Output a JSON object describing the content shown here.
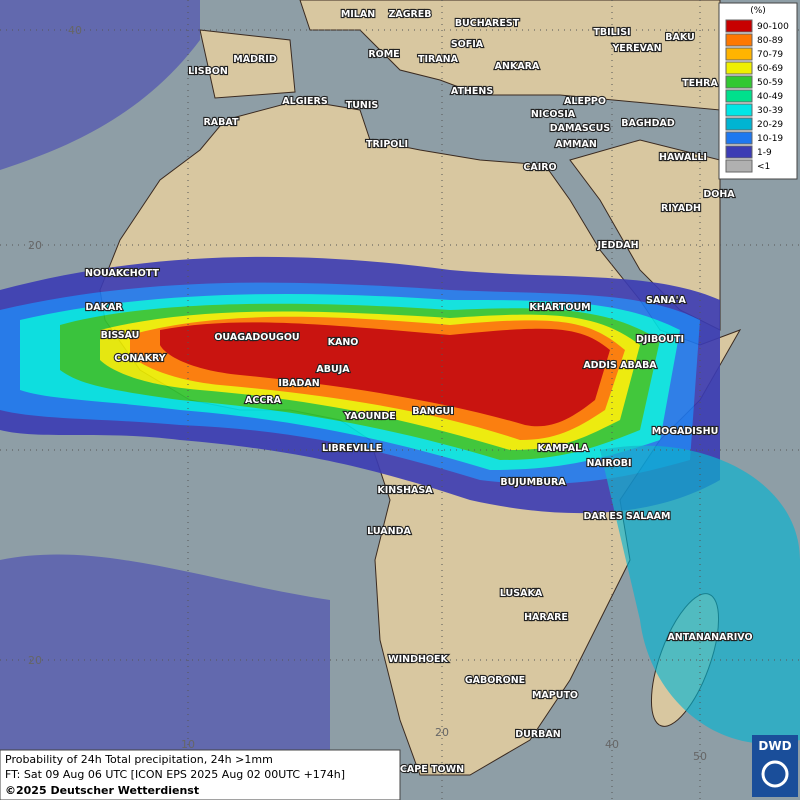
{
  "map": {
    "legend": {
      "title": "(%)",
      "entries": [
        {
          "label": "90-100",
          "color": "#c80000"
        },
        {
          "label": "80-89",
          "color": "#ff7800"
        },
        {
          "label": "70-79",
          "color": "#ffb400"
        },
        {
          "label": "60-69",
          "color": "#f0f000"
        },
        {
          "label": "50-59",
          "color": "#32c832"
        },
        {
          "label": "40-49",
          "color": "#00e08c"
        },
        {
          "label": "30-39",
          "color": "#00e6e6"
        },
        {
          "label": "20-29",
          "color": "#00b4d2"
        },
        {
          "label": "10-19",
          "color": "#1e78f0"
        },
        {
          "label": "1-9",
          "color": "#3c3cb4"
        },
        {
          "label": "<1",
          "color": "#b0b0b0"
        }
      ]
    },
    "cities": [
      "MILAN",
      "ZAGREB",
      "BUCHAREST",
      "TBILISI",
      "BAKU",
      "MADRID",
      "ROME",
      "SOFIA",
      "YEREVAN",
      "LISBON",
      "TIRANA",
      "ANKARA",
      "TEHRA",
      "ATHENS",
      "ALGIERS",
      "TUNIS",
      "ALEPPO",
      "NICOSIA",
      "RABAT",
      "BAGHDAD",
      "DAMASCUS",
      "TRIPOLI",
      "AMMAN",
      "HAWALLI",
      "CAIRO",
      "DOHA",
      "RIYADH",
      "JEDDAH",
      "NOUAKCHOTT",
      "KHARTOUM",
      "SANA'A",
      "DAKAR",
      "DJIBOUTI",
      "BISSAU",
      "OUAGADOUGOU",
      "KANO",
      "CONAKRY",
      "ADDIS ABABA",
      "ABUJA",
      "IBADAN",
      "ACCRA",
      "BANGUI",
      "YAOUNDE",
      "MOGADISHU",
      "LIBREVILLE",
      "KAMPALA",
      "NAIROBI",
      "BUJUMBURA",
      "KINSHASA",
      "DAR ES SALAAM",
      "LUANDA",
      "LUSAKA",
      "HARARE",
      "ANTANANARIVO",
      "WINDHOEK",
      "GABORONE",
      "MAPUTO",
      "DURBAN",
      "CAPE TOWN"
    ],
    "grid_labels": [
      "40",
      "20",
      "20",
      "10",
      "20",
      "40",
      "50"
    ],
    "footer": {
      "line1": "Probability of 24h Total precipitation, 24h >1mm",
      "line2": "FT: Sat 09 Aug 06 UTC [ICON EPS 2025 Aug 02 00UTC +174h]",
      "copyright": "©2025 Deutscher Wetterdienst"
    },
    "logo": "DWD"
  }
}
